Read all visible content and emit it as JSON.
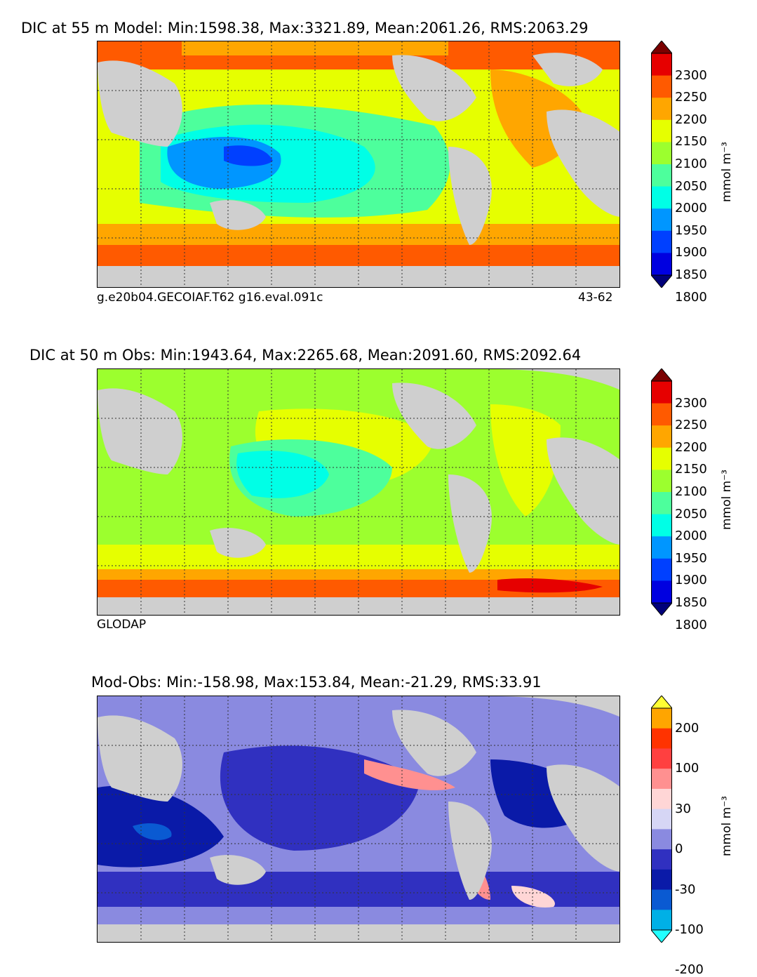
{
  "panels": [
    {
      "title": "DIC at 55 m Model: Min:1598.38, Max:3321.89, Mean:2061.26, RMS:2063.29",
      "caption_left": "g.e20b04.GECOIAF.T62 g16.eval.091c",
      "caption_right": "43-62",
      "colorbar": {
        "unit": "mmol m⁻³",
        "ticks": [
          "2300",
          "2250",
          "2200",
          "2150",
          "2100",
          "2050",
          "2000",
          "1950",
          "1900",
          "1850",
          "1800"
        ],
        "colors": [
          "#7a0000",
          "#e60000",
          "#ff5a00",
          "#ffa600",
          "#e6ff00",
          "#9cff2e",
          "#4dff9c",
          "#00ffe6",
          "#0096ff",
          "#0040ff",
          "#0000e0",
          "#00007a"
        ]
      }
    },
    {
      "title": "DIC at 50 m Obs: Min:1943.64, Max:2265.68, Mean:2091.60, RMS:2092.64",
      "caption_left": "GLODAP",
      "caption_right": "",
      "colorbar": {
        "unit": "mmol m⁻³",
        "ticks": [
          "2300",
          "2250",
          "2200",
          "2150",
          "2100",
          "2050",
          "2000",
          "1950",
          "1900",
          "1850",
          "1800"
        ],
        "colors": [
          "#7a0000",
          "#e60000",
          "#ff5a00",
          "#ffa600",
          "#e6ff00",
          "#9cff2e",
          "#4dff9c",
          "#00ffe6",
          "#0096ff",
          "#0040ff",
          "#0000e0",
          "#00007a"
        ]
      }
    },
    {
      "title": "Mod-Obs: Min:-158.98, Max:153.84, Mean:-21.29, RMS:33.91",
      "caption_left": "",
      "caption_right": "",
      "colorbar": {
        "unit": "mmol m⁻³",
        "ticks": [
          "200",
          "100",
          "30",
          "0",
          "-30",
          "-100",
          "-200"
        ],
        "colors": [
          "#ffff33",
          "#ffa500",
          "#ff3300",
          "#ff4040",
          "#ff9090",
          "#ffd6d6",
          "#d6d6f5",
          "#8a8ae0",
          "#3030c0",
          "#0a1aa8",
          "#0a5ad2",
          "#00b0e6",
          "#22ffff"
        ]
      }
    }
  ]
}
